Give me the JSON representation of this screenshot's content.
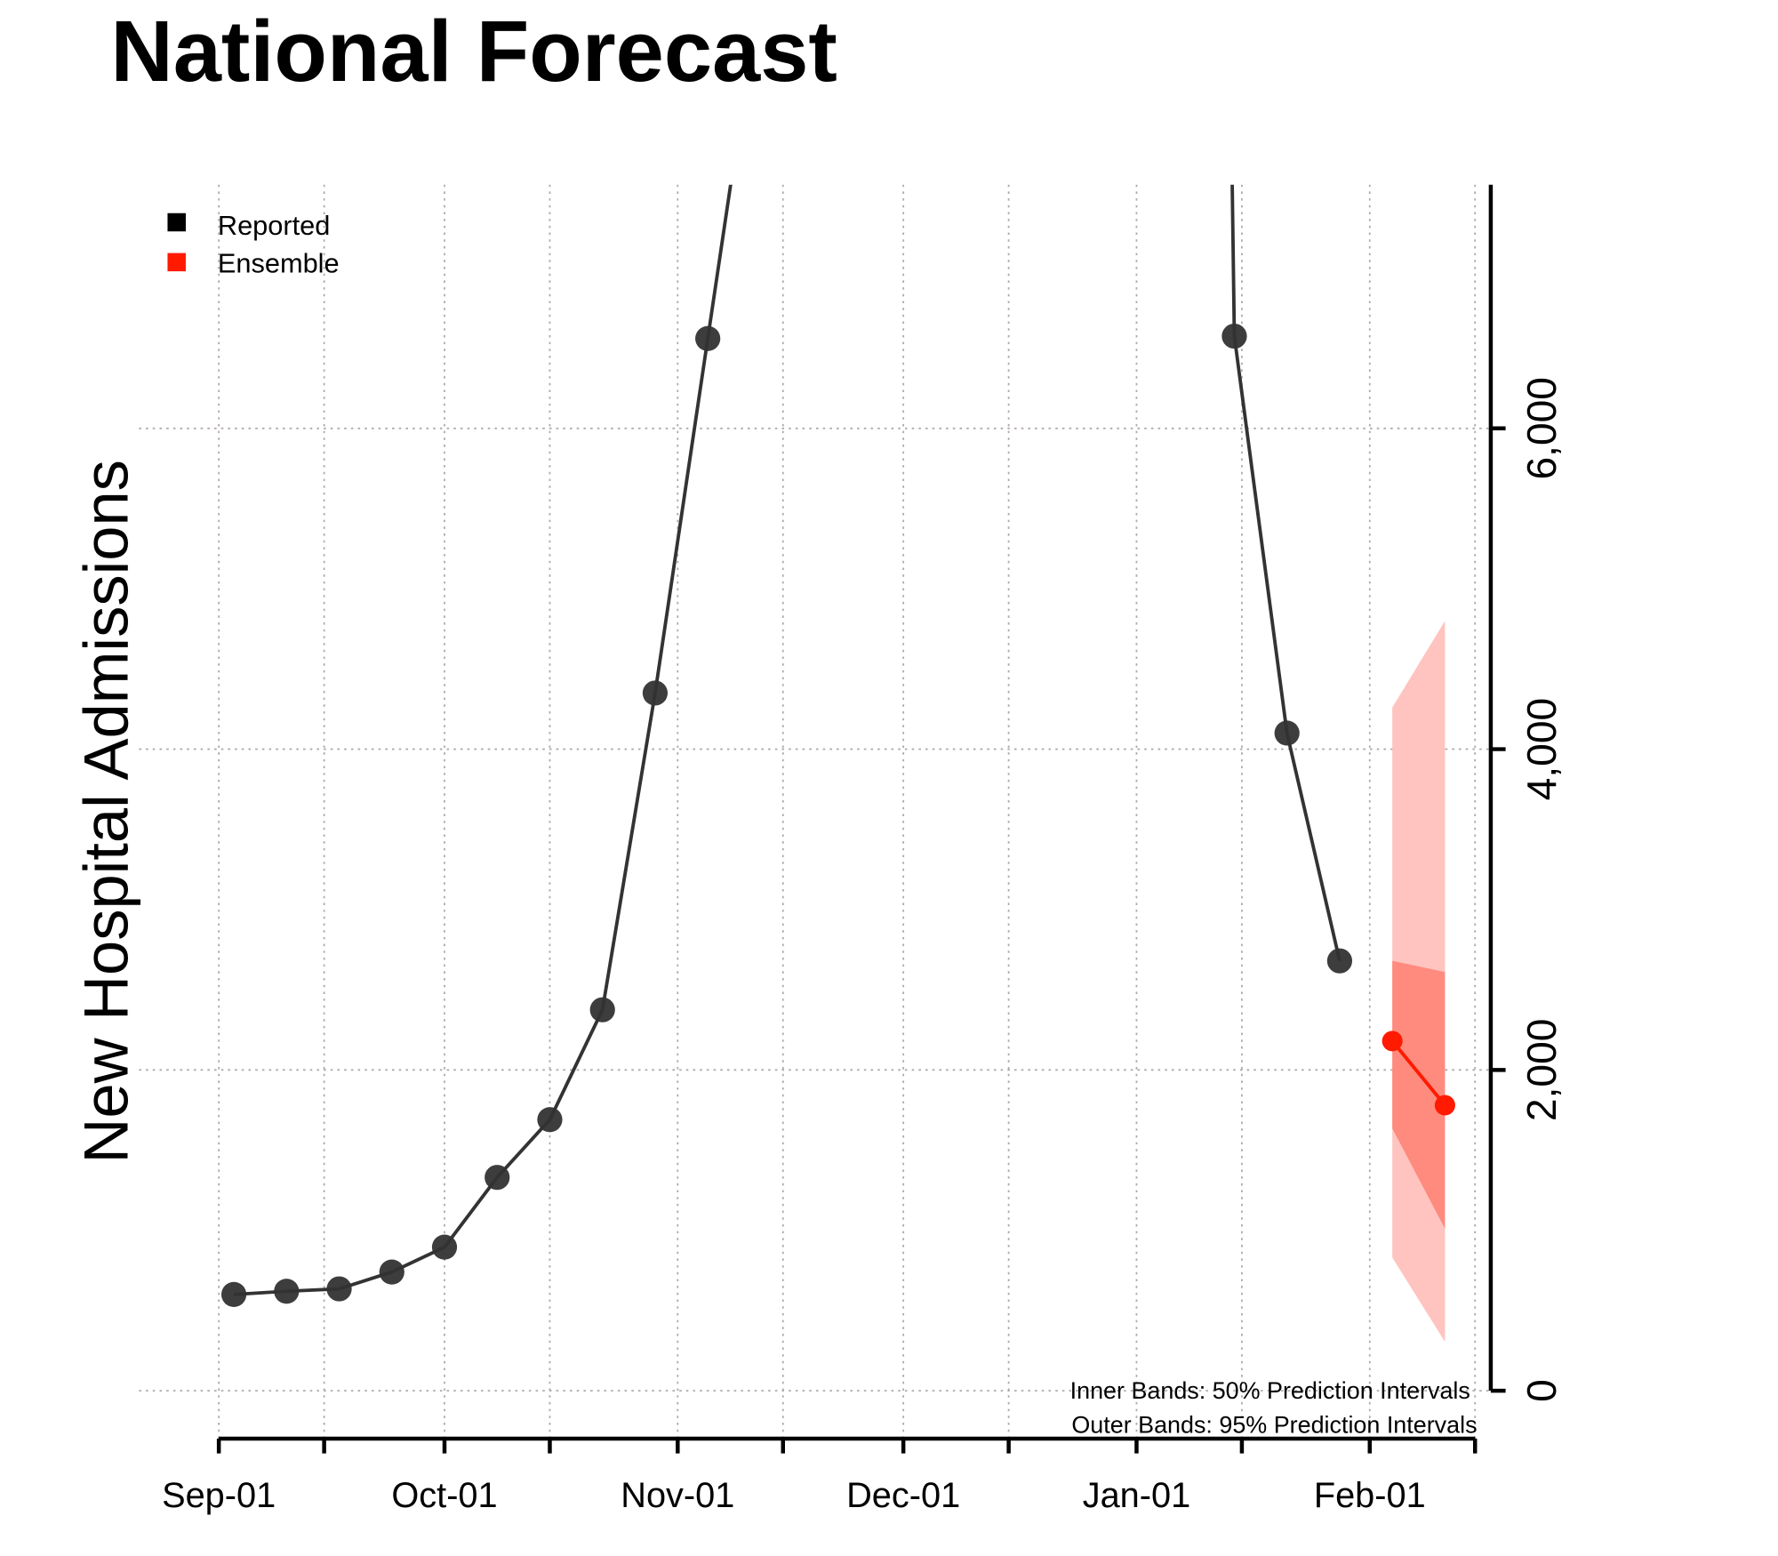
{
  "chart_data": {
    "type": "line",
    "title": "National Forecast",
    "ylabel": "New Hospital Admissions",
    "xlabel": "",
    "xlim": [
      "2022-09-01",
      "2023-02-15"
    ],
    "ylim": [
      -300,
      7520
    ],
    "x_tick_labels": [
      {
        "date": "2022-09-01",
        "label": "Sep-01"
      },
      {
        "date": "2022-10-01",
        "label": "Oct-01"
      },
      {
        "date": "2022-11-01",
        "label": "Nov-01"
      },
      {
        "date": "2022-12-01",
        "label": "Dec-01"
      },
      {
        "date": "2023-01-01",
        "label": "Jan-01"
      },
      {
        "date": "2023-02-01",
        "label": "Feb-01"
      }
    ],
    "x_minor_ticks": [
      "2022-09-15",
      "2022-10-15",
      "2022-11-15",
      "2022-12-15",
      "2023-01-15",
      "2023-02-15"
    ],
    "y_ticks": [
      {
        "value": 0,
        "label": "0"
      },
      {
        "value": 2000,
        "label": "2,000"
      },
      {
        "value": 4000,
        "label": "4,000"
      },
      {
        "value": 6000,
        "label": "6,000"
      }
    ],
    "grid": true,
    "y_axis_side": "right",
    "legend": {
      "placement": "top-left",
      "entries": [
        {
          "label": "Reported",
          "color": "#000000"
        },
        {
          "label": "Ensemble",
          "color": "#ff1a00"
        }
      ]
    },
    "series": [
      {
        "name": "Reported",
        "color": "#333333",
        "points": [
          {
            "x": "2022-09-03",
            "y": 600
          },
          {
            "x": "2022-09-10",
            "y": 620
          },
          {
            "x": "2022-09-17",
            "y": 635
          },
          {
            "x": "2022-09-24",
            "y": 740
          },
          {
            "x": "2022-10-01",
            "y": 895
          },
          {
            "x": "2022-10-08",
            "y": 1330
          },
          {
            "x": "2022-10-15",
            "y": 1690
          },
          {
            "x": "2022-10-22",
            "y": 2375
          },
          {
            "x": "2022-10-29",
            "y": 4350
          },
          {
            "x": "2022-11-05",
            "y": 6560
          },
          {
            "x": "2023-01-14",
            "y": 6575
          },
          {
            "x": "2023-01-21",
            "y": 4100
          },
          {
            "x": "2023-01-28",
            "y": 2680
          }
        ]
      },
      {
        "name": "Ensemble",
        "color": "#ff1a00",
        "points": [
          {
            "x": "2023-02-04",
            "y": 2180,
            "lo50": 1635,
            "hi50": 2680,
            "lo95": 830,
            "hi95": 4260
          },
          {
            "x": "2023-02-11",
            "y": 1780,
            "lo50": 1010,
            "hi50": 2610,
            "lo95": 305,
            "hi95": 4800
          }
        ],
        "inner_band_color": "#ff8a7e",
        "outer_band_color": "#ffc4bf"
      }
    ],
    "annotations": [
      "Inner Bands: 50% Prediction Intervals",
      "Outer Bands: 95% Prediction Intervals"
    ]
  }
}
